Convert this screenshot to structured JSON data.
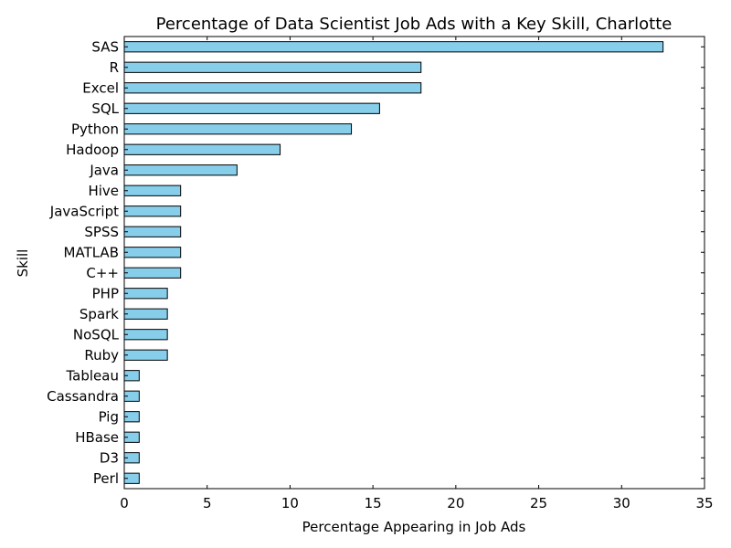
{
  "chart_data": {
    "type": "bar",
    "orientation": "horizontal",
    "title": "Percentage of Data Scientist Job Ads with a Key Skill, Charlotte",
    "xlabel": "Percentage Appearing in Job Ads",
    "ylabel": "Skill",
    "xlim": [
      0,
      35
    ],
    "xticks": [
      "0",
      "5",
      "10",
      "15",
      "20",
      "25",
      "30",
      "35"
    ],
    "grid": false,
    "bar_color": "#87ceeb",
    "edge_color": "#000000",
    "categories": [
      "SAS",
      "R",
      "Excel",
      "SQL",
      "Python",
      "Hadoop",
      "Java",
      "Hive",
      "JavaScript",
      "SPSS",
      "MATLAB",
      "C++",
      "PHP",
      "Spark",
      "NoSQL",
      "Ruby",
      "Tableau",
      "Cassandra",
      "Pig",
      "HBase",
      "D3",
      "Perl"
    ],
    "values": [
      32.5,
      17.9,
      17.9,
      15.4,
      13.7,
      9.4,
      6.8,
      3.4,
      3.4,
      3.4,
      3.4,
      3.4,
      2.6,
      2.6,
      2.6,
      2.6,
      0.9,
      0.9,
      0.9,
      0.9,
      0.9,
      0.9
    ]
  }
}
